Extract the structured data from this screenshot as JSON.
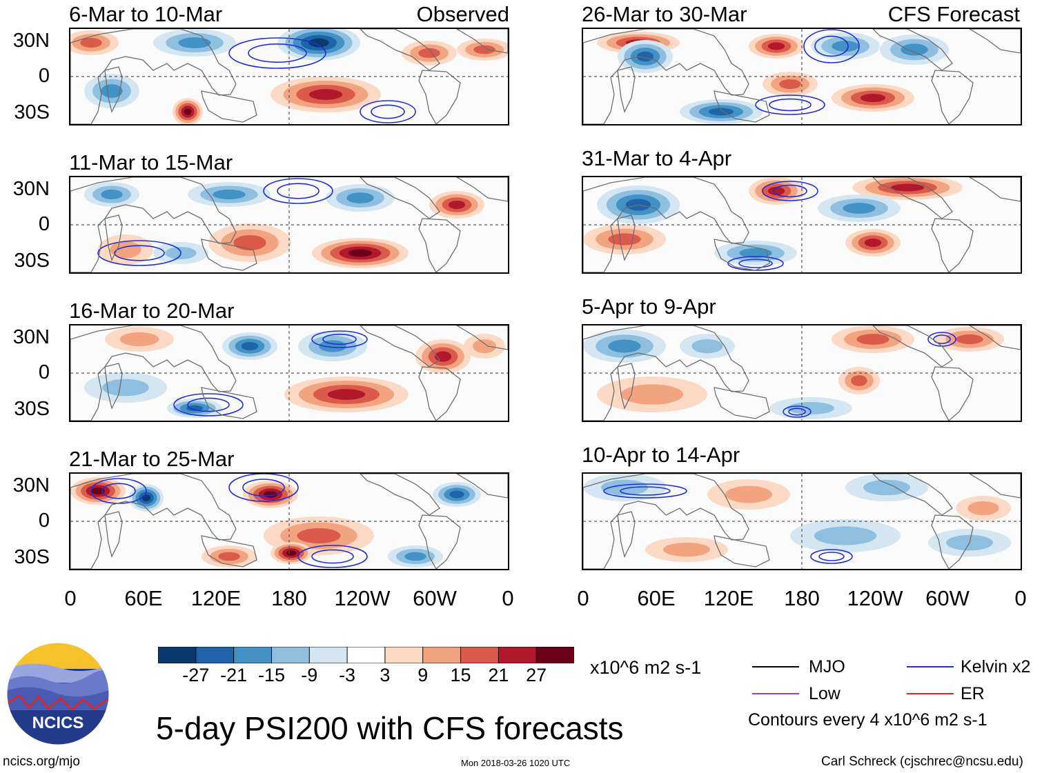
{
  "figure": {
    "title": "5-day PSI200 with CFS forecasts",
    "units": "x10^6 m2 s-1",
    "contour_note": "Contours every 4 x10^6 m2 s-1",
    "website": "ncics.org/mjo",
    "timestamp": "Mon 2018-03-26 1020 UTC",
    "author": "Carl Schreck (cjschrec@ncsu.edu)",
    "logo_text": "NCICS"
  },
  "columns": {
    "left_tag": "Observed",
    "right_tag": "CFS Forecast"
  },
  "panels": [
    {
      "title": "6-Mar to 10-Mar"
    },
    {
      "title": "11-Mar to 15-Mar"
    },
    {
      "title": "16-Mar to 20-Mar"
    },
    {
      "title": "21-Mar to 25-Mar"
    },
    {
      "title": "26-Mar to 30-Mar"
    },
    {
      "title": "31-Mar to 4-Apr"
    },
    {
      "title": "5-Apr to 9-Apr"
    },
    {
      "title": "10-Apr to 14-Apr"
    }
  ],
  "lat_ticks": [
    "30N",
    "0",
    "30S"
  ],
  "lon_ticks": [
    "0",
    "60E",
    "120E",
    "180",
    "120W",
    "60W",
    "0"
  ],
  "colorbar": {
    "labels": [
      "-27",
      "-21",
      "-15",
      "-9",
      "-3",
      "3",
      "9",
      "15",
      "21",
      "27"
    ],
    "colors": [
      "#0a3a6e",
      "#1f64a8",
      "#4292c6",
      "#8fbfe0",
      "#d3e6f2",
      "#ffffff",
      "#fcd9c4",
      "#f2a380",
      "#da5a4c",
      "#b2182b",
      "#6b0019"
    ]
  },
  "legend": [
    {
      "label": "MJO",
      "color": "#000000"
    },
    {
      "label": "Kelvin x2",
      "color": "#1f2fd6"
    },
    {
      "label": "Low",
      "color": "#9b3fd1"
    },
    {
      "label": "ER",
      "color": "#e3241f"
    }
  ]
}
